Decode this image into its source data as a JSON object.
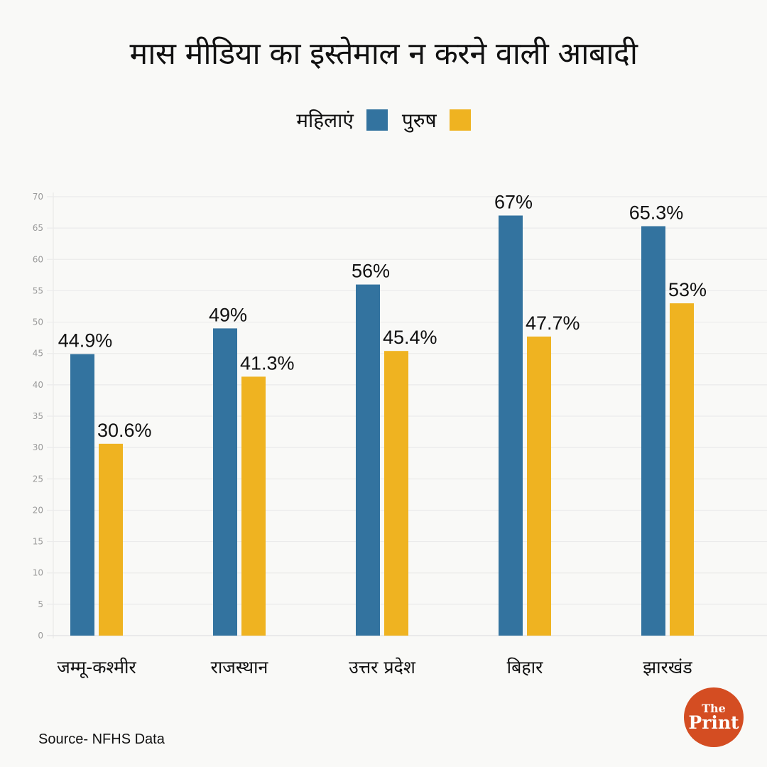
{
  "header": {
    "title": "मास मीडिया का इस्तेमाल न करने वाली आबादी"
  },
  "legend": [
    {
      "label": "महिलाएं",
      "color": "#33739f"
    },
    {
      "label": "पुरुष",
      "color": "#efb321"
    }
  ],
  "chart_data": {
    "type": "bar",
    "title": "मास मीडिया का इस्तेमाल न करने वाली आबादी",
    "xlabel": "",
    "ylabel": "",
    "ylim": [
      0,
      70
    ],
    "yticks": [
      0,
      5,
      10,
      15,
      20,
      25,
      30,
      35,
      40,
      45,
      50,
      55,
      60,
      65,
      70
    ],
    "grid": true,
    "legend_position": "top-center",
    "categories": [
      "जम्मू-कश्मीर",
      "राजस्थान",
      "उत्तर प्रदेश",
      "बिहार",
      "झारखंड"
    ],
    "series": [
      {
        "name": "महिलाएं",
        "color": "#33739f",
        "values": [
          44.9,
          49,
          56,
          67,
          65.3
        ],
        "labels": [
          "44.9%",
          "49%",
          "56%",
          "67%",
          "65.3%"
        ]
      },
      {
        "name": "पुरुष",
        "color": "#efb321",
        "values": [
          30.6,
          41.3,
          45.4,
          47.7,
          53
        ],
        "labels": [
          "30.6%",
          "41.3%",
          "45.4%",
          "47.7%",
          "53%"
        ]
      }
    ]
  },
  "footer": {
    "source": "Source- NFHS Data",
    "logo_line1": "The",
    "logo_line2": "Print",
    "logo_color": "#d44d22"
  }
}
